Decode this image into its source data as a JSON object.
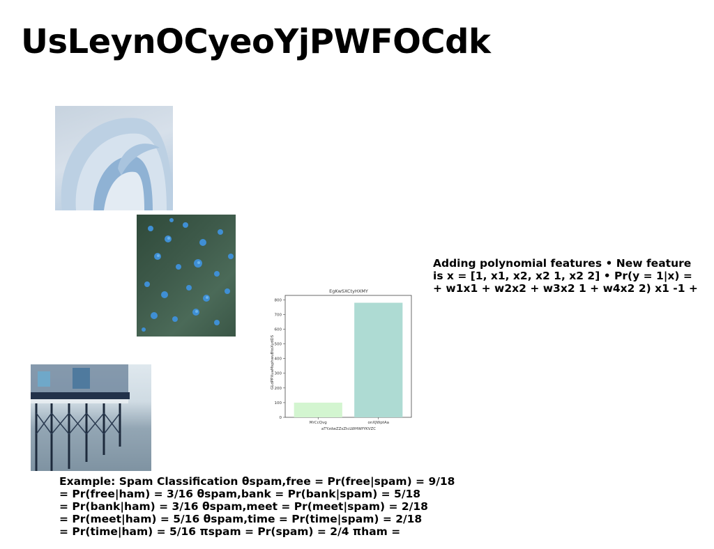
{
  "slide": {
    "title": "UsLeynOCyeoYjPWFOCdk"
  },
  "side_text": {
    "lines": [
      "Adding polynomial features • New feature",
      "is x = [1, x1, x2, x2 1, x2 2] • Pr(y = 1|x) =",
      "+ w1x1 + w2x2 + w3x2 1 + w4x2 2) x1 -1 +"
    ]
  },
  "bottom_text": {
    "lines": [
      "Example: Spam Classification θspam,free = Pr(free|spam) = 9/18",
      "= Pr(free|ham) = 3/16 θspam,bank = Pr(bank|spam) = 5/18",
      "= Pr(bank|ham) = 3/16 θspam,meet = Pr(meet|spam) = 2/18",
      "= Pr(meet|ham) = 5/16 θspam,time = Pr(time|spam) = 2/18",
      "= Pr(time|ham) = 5/16 πspam = Pr(spam) = 2/4 πham ="
    ]
  },
  "chart_data": {
    "type": "bar",
    "title": "EgKwSXCtyHXMY",
    "xlabel": "aTYzdwZZsZtcLWHWfYKVZC",
    "ylabel": "GLdPPXuaMsphwuBtoXydDS",
    "categories": [
      "MrCcQvg",
      "onXJWptAa"
    ],
    "values": [
      100,
      780
    ],
    "colors": [
      "#d3f5d0",
      "#aedbd3"
    ],
    "ylim": [
      0,
      830
    ],
    "yticks": [
      0,
      100,
      200,
      300,
      400,
      500,
      600,
      700,
      800
    ],
    "grid": false
  }
}
